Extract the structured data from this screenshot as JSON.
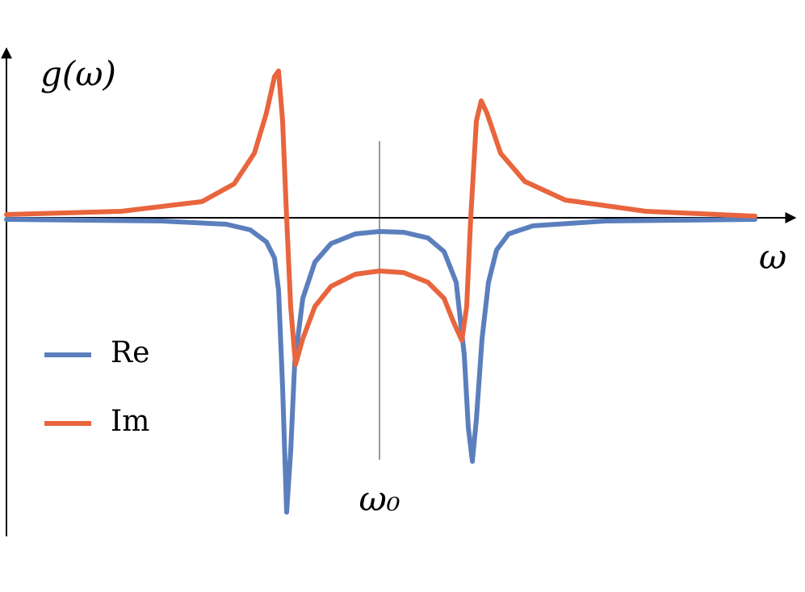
{
  "chart_data": {
    "type": "line",
    "y_label": "g(ω)",
    "x_label": "ω",
    "annotations": [
      {
        "text": "ω₀",
        "x": 0
      }
    ],
    "xlim": [
      -4.62,
      5.15
    ],
    "ylim": [
      -3.95,
      2.1
    ],
    "legend": "left",
    "series": [
      {
        "name": "Re",
        "color": "#5b7fbd",
        "x": [
          -4.62,
          -2.7,
          -1.9,
          -1.6,
          -1.4,
          -1.3,
          -1.25,
          -1.2,
          -1.15,
          -1.1,
          -1.05,
          -0.95,
          -0.8,
          -0.6,
          -0.3,
          0,
          0.3,
          0.6,
          0.8,
          0.95,
          1.05,
          1.1,
          1.15,
          1.2,
          1.27,
          1.35,
          1.45,
          1.6,
          1.9,
          2.8,
          4.65
        ],
        "values": [
          -0.02,
          -0.04,
          -0.08,
          -0.15,
          -0.3,
          -0.5,
          -0.9,
          -2.1,
          -3.65,
          -2.9,
          -1.8,
          -1.0,
          -0.55,
          -0.32,
          -0.2,
          -0.17,
          -0.18,
          -0.25,
          -0.42,
          -0.8,
          -1.7,
          -2.6,
          -3.02,
          -2.5,
          -1.5,
          -0.8,
          -0.4,
          -0.2,
          -0.1,
          -0.04,
          -0.02
        ]
      },
      {
        "name": "Im",
        "color": "#e8653d",
        "x": [
          -4.62,
          -3.2,
          -2.2,
          -1.8,
          -1.55,
          -1.4,
          -1.3,
          -1.25,
          -1.2,
          -1.15,
          -1.1,
          -1.04,
          -0.95,
          -0.8,
          -0.6,
          -0.3,
          0,
          0.3,
          0.6,
          0.8,
          0.92,
          1.02,
          1.08,
          1.13,
          1.2,
          1.26,
          1.33,
          1.5,
          1.8,
          2.3,
          3.3,
          4.65
        ],
        "values": [
          0.04,
          0.08,
          0.2,
          0.42,
          0.8,
          1.3,
          1.75,
          1.82,
          1.2,
          0.0,
          -1.1,
          -1.82,
          -1.5,
          -1.1,
          -0.85,
          -0.7,
          -0.66,
          -0.68,
          -0.8,
          -1.0,
          -1.3,
          -1.52,
          -1.1,
          0.0,
          1.2,
          1.45,
          1.3,
          0.8,
          0.45,
          0.22,
          0.08,
          0.02
        ]
      }
    ]
  }
}
